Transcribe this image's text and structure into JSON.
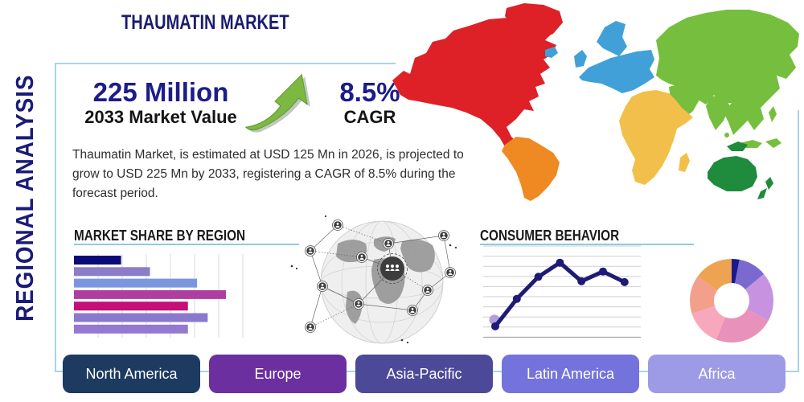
{
  "header": {
    "title": "THAUMATIN MARKET"
  },
  "sidebar": {
    "vertical_label": "REGIONAL ANALYSIS"
  },
  "stats": {
    "market_value": "225 Million",
    "market_value_label": "2033 Market Value",
    "cagr_value": "8.5%",
    "cagr_label": "CAGR",
    "description": "Thaumatin Market, is estimated at USD 125 Mn in 2026, is projected to grow to USD 225 Mn by 2033, registering a CAGR of 8.5% during the forecast period."
  },
  "sections": {
    "market_share_title": "MARKET SHARE BY REGION",
    "consumer_behavior_title": "CONSUMER BEHAVIOR"
  },
  "regions": [
    {
      "label": "North America",
      "color": "#1d3a60"
    },
    {
      "label": "Europe",
      "color": "#6b2fa0"
    },
    {
      "label": "Asia-Pacific",
      "color": "#4c4999"
    },
    {
      "label": "Latin America",
      "color": "#7472dd"
    },
    {
      "label": "Africa",
      "color": "#9d9be6"
    }
  ],
  "map": {
    "colors": {
      "north_america": "#dd2127",
      "greenland": "#dd2127",
      "south_america": "#ef8921",
      "europe": "#41a0d8",
      "africa": "#f2c04a",
      "asia": "#76bf3e",
      "australia": "#1f8b3c"
    }
  },
  "icons": {
    "growth_arrow": "trending-up-arrow",
    "globe": "global-network-globe"
  },
  "theme": {
    "accent_navy": "#1b1b78",
    "border_blue": "#a5d5e6",
    "arrow_green": "#7cb842"
  },
  "chart_data": [
    {
      "type": "bar",
      "orientation": "horizontal",
      "title": "MARKET SHARE BY REGION",
      "categories": [
        "",
        "",
        "",
        "",
        "",
        "",
        ""
      ],
      "values": [
        31,
        50,
        81,
        100,
        75,
        88,
        75
      ],
      "xlim": [
        0,
        110
      ],
      "grid": "vertical",
      "colors": [
        "#0a0a78",
        "#8d7cc9",
        "#7b96dd",
        "#ae3fa0",
        "#c40f78",
        "#8a79ce",
        "#9479cf"
      ]
    },
    {
      "type": "line",
      "title": "CONSUMER BEHAVIOR",
      "x": [
        1,
        2,
        3,
        4,
        5,
        6,
        7
      ],
      "values": [
        11,
        42,
        67,
        83,
        62,
        73,
        61
      ],
      "ylim": [
        0,
        100
      ],
      "grid": "horizontal",
      "color": "#1e1b75",
      "first_point_halo": "#b39ddb"
    },
    {
      "type": "pie",
      "donut": true,
      "values": [
        3,
        11,
        19,
        23,
        14,
        15,
        15
      ],
      "colors": [
        "#1a1a8c",
        "#7a6ad0",
        "#c792e0",
        "#e892bb",
        "#f8a8bd",
        "#f2a08c",
        "#eda352"
      ],
      "legend": "none"
    }
  ]
}
